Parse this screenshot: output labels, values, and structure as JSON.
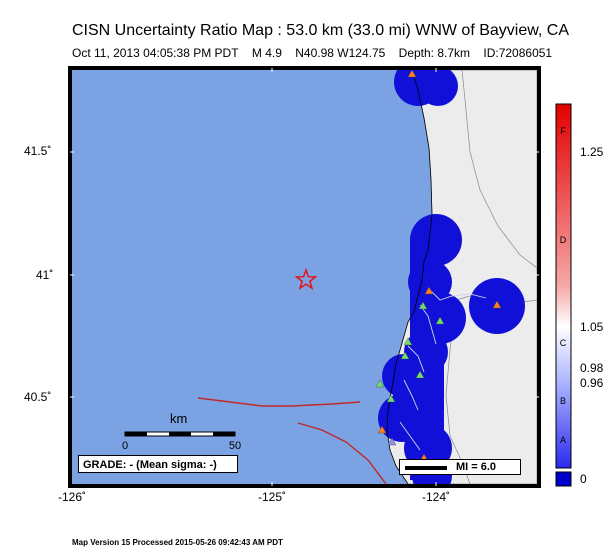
{
  "header": {
    "title": "CISN Uncertainty Ratio Map : 53.0 km (33.0 mi) WNW of Bayview, CA",
    "date": "Oct 11, 2013 04:05:38 PM PDT",
    "magnitude": "M 4.9",
    "location": "N40.98 W124.75",
    "depth": "Depth: 8.7km",
    "event_id": "ID:72086051"
  },
  "map": {
    "latitude_labels": [
      "41.5˚",
      "41˚",
      "40.5˚"
    ],
    "longitude_labels": [
      "-126˚",
      "-125˚",
      "-124˚"
    ],
    "ocean_color": "#7ba3e3",
    "land_color": "#ececec",
    "uncertainty_color": "#1010d8"
  },
  "scale": {
    "unit": "km",
    "start": "0",
    "end": "50"
  },
  "grade_box": {
    "text": "GRADE: - (Mean sigma: -)"
  },
  "mi_box": {
    "text": "MI = 6.0"
  },
  "colorbar": {
    "values": [
      "1.25",
      "1.05",
      "0.98",
      "0.96",
      "0"
    ],
    "grades": [
      "F",
      "D",
      "C",
      "B",
      "A"
    ]
  },
  "footer": {
    "text": "Map Version 15 Processed 2015-05-26 09:42:43 AM PDT"
  }
}
